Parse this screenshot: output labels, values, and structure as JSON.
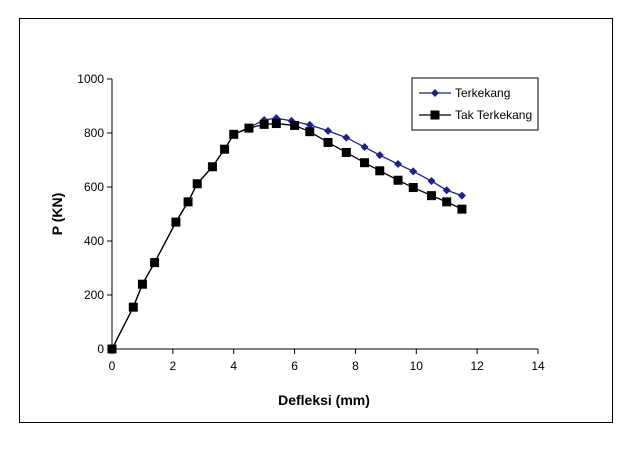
{
  "chart_data": {
    "type": "line",
    "title": "",
    "xlabel": "Defleksi (mm)",
    "ylabel": "P (KN)",
    "xlim": [
      0,
      14
    ],
    "ylim": [
      0,
      1000
    ],
    "xticks": [
      0,
      2,
      4,
      6,
      8,
      10,
      12,
      14
    ],
    "yticks": [
      0,
      200,
      400,
      600,
      800,
      1000
    ],
    "grid": false,
    "legend_position": "top-right",
    "series": [
      {
        "name": "Terkekang",
        "color": "#1f1f8f",
        "marker": "diamond",
        "x": [
          0,
          0.7,
          1.0,
          1.4,
          2.1,
          2.5,
          2.8,
          3.3,
          3.7,
          4.0,
          4.5,
          5.0,
          5.4,
          5.9,
          6.5,
          7.1,
          7.7,
          8.3,
          8.8,
          9.4,
          9.9,
          10.5,
          11.0,
          11.5
        ],
        "y": [
          0,
          155,
          240,
          320,
          470,
          545,
          612,
          675,
          740,
          795,
          820,
          848,
          855,
          845,
          830,
          808,
          783,
          748,
          718,
          685,
          658,
          622,
          588,
          568
        ]
      },
      {
        "name": "Tak Terkekang",
        "color": "#000000",
        "marker": "square",
        "x": [
          0,
          0.7,
          1.0,
          1.4,
          2.1,
          2.5,
          2.8,
          3.3,
          3.7,
          4.0,
          4.5,
          5.0,
          5.4,
          6.0,
          6.5,
          7.1,
          7.7,
          8.3,
          8.8,
          9.4,
          9.9,
          10.5,
          11.0,
          11.5
        ],
        "y": [
          0,
          155,
          240,
          320,
          470,
          545,
          612,
          675,
          740,
          795,
          818,
          832,
          835,
          828,
          805,
          765,
          728,
          690,
          660,
          625,
          598,
          568,
          545,
          518
        ]
      }
    ]
  }
}
